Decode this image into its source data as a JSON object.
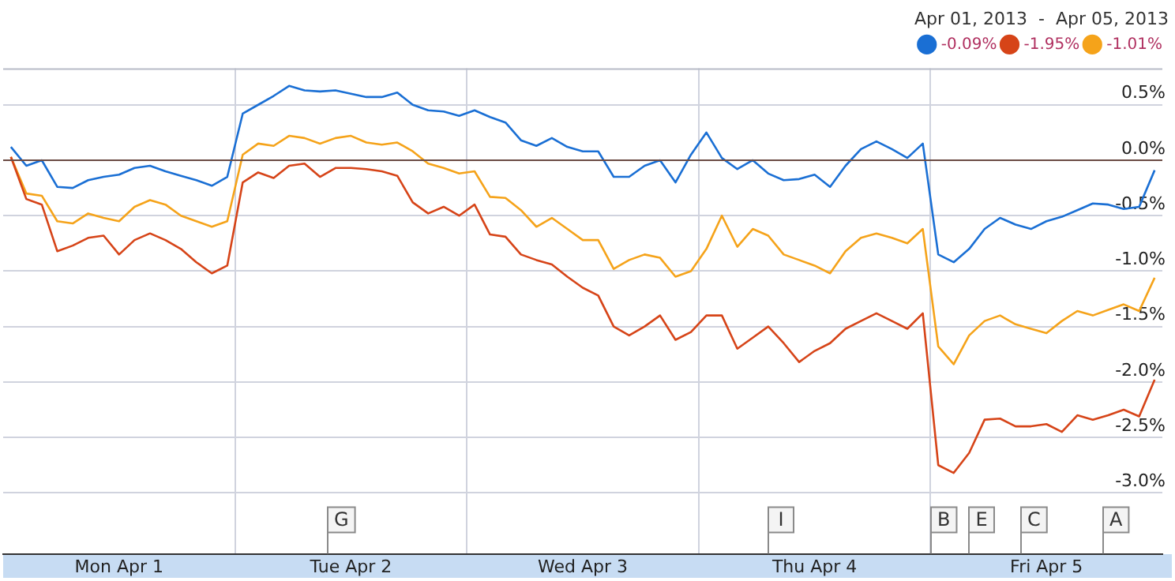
{
  "chart_data": {
    "type": "line",
    "title": "Apr 01, 2013  -  Apr 05, 2013",
    "categories": [
      null,
      null,
      null,
      null,
      null,
      null,
      null,
      "Mon Apr 1",
      null,
      null,
      null,
      null,
      null,
      null,
      null,
      null,
      null,
      null,
      null,
      null,
      null,
      null,
      "Tue Apr 2",
      null,
      null,
      null,
      null,
      null,
      null,
      null,
      null,
      null,
      null,
      null,
      null,
      null,
      null,
      "Wed Apr 3",
      null,
      null,
      null,
      null,
      null,
      null,
      null,
      null,
      null,
      null,
      null,
      null,
      null,
      null,
      "Thu Apr 4",
      null,
      null,
      null,
      null,
      null,
      null,
      null,
      null,
      null,
      null,
      null,
      null,
      null,
      null,
      "Fri Apr 5",
      null,
      null,
      null,
      null,
      null,
      null,
      null
    ],
    "ylim": [
      -3.55,
      0.83
    ],
    "yticks": [
      {
        "value": 0.5,
        "label": "0.5%"
      },
      {
        "value": 0,
        "label": "0.0%"
      },
      {
        "value": -0.5,
        "label": "-0.5%"
      },
      {
        "value": -1,
        "label": "-1.0%"
      },
      {
        "value": -1.5,
        "label": "-1.5%"
      },
      {
        "value": -2,
        "label": "-2.0%"
      },
      {
        "value": -2.5,
        "label": "-2.5%"
      },
      {
        "value": -3,
        "label": "-3.0%"
      }
    ],
    "grid": true,
    "legend": "top right",
    "marker": "none",
    "line_style": "solid",
    "ref_lines": [
      {
        "axis": "y",
        "value": 0,
        "color": "#6b4c44"
      }
    ],
    "annotations": [
      "G",
      "I",
      "B",
      "E",
      "C",
      "A"
    ],
    "series": [
      {
        "name": "-0.09%",
        "color": "#1a6fd4",
        "values": [
          0.12,
          -0.05,
          0.0,
          -0.24,
          -0.25,
          -0.18,
          -0.15,
          -0.13,
          -0.07,
          -0.05,
          -0.1,
          -0.14,
          -0.18,
          -0.23,
          -0.15,
          0.42,
          0.5,
          0.58,
          0.67,
          0.63,
          0.62,
          0.63,
          0.6,
          0.57,
          0.57,
          0.61,
          0.5,
          0.45,
          0.44,
          0.4,
          0.45,
          0.39,
          0.34,
          0.18,
          0.13,
          0.2,
          0.12,
          0.08,
          0.08,
          -0.15,
          -0.15,
          -0.05,
          0.0,
          -0.2,
          0.05,
          0.25,
          0.02,
          -0.08,
          0.0,
          -0.12,
          -0.18,
          -0.17,
          -0.13,
          -0.24,
          -0.05,
          0.1,
          0.17,
          0.1,
          0.02,
          0.15,
          -0.85,
          -0.92,
          -0.8,
          -0.62,
          -0.52,
          -0.58,
          -0.62,
          -0.55,
          -0.51,
          -0.45,
          -0.39,
          -0.4,
          -0.44,
          -0.42,
          -0.09
        ]
      },
      {
        "name": "-1.95%",
        "color": "#d64418",
        "values": [
          0.03,
          -0.35,
          -0.4,
          -0.82,
          -0.77,
          -0.7,
          -0.68,
          -0.85,
          -0.72,
          -0.66,
          -0.72,
          -0.8,
          -0.92,
          -1.02,
          -0.95,
          -0.2,
          -0.11,
          -0.16,
          -0.05,
          -0.03,
          -0.15,
          -0.07,
          -0.07,
          -0.08,
          -0.1,
          -0.14,
          -0.38,
          -0.48,
          -0.42,
          -0.5,
          -0.4,
          -0.67,
          -0.69,
          -0.85,
          -0.9,
          -0.94,
          -1.05,
          -1.15,
          -1.22,
          -1.5,
          -1.58,
          -1.5,
          -1.4,
          -1.62,
          -1.55,
          -1.4,
          -1.4,
          -1.7,
          -1.6,
          -1.5,
          -1.65,
          -1.82,
          -1.72,
          -1.65,
          -1.52,
          -1.45,
          -1.38,
          -1.45,
          -1.52,
          -1.38,
          -2.75,
          -2.82,
          -2.64,
          -2.34,
          -2.33,
          -2.4,
          -2.4,
          -2.38,
          -2.45,
          -2.3,
          -2.34,
          -2.3,
          -2.25,
          -2.31,
          -1.98
        ]
      },
      {
        "name": "-1.01%",
        "color": "#f5a31a",
        "values": [
          0.03,
          -0.3,
          -0.32,
          -0.55,
          -0.57,
          -0.48,
          -0.52,
          -0.55,
          -0.42,
          -0.36,
          -0.4,
          -0.5,
          -0.55,
          -0.6,
          -0.55,
          0.05,
          0.15,
          0.13,
          0.22,
          0.2,
          0.15,
          0.2,
          0.22,
          0.16,
          0.14,
          0.16,
          0.08,
          -0.03,
          -0.07,
          -0.12,
          -0.1,
          -0.33,
          -0.34,
          -0.45,
          -0.6,
          -0.52,
          -0.62,
          -0.72,
          -0.72,
          -0.98,
          -0.9,
          -0.85,
          -0.88,
          -1.05,
          -1.0,
          -0.8,
          -0.5,
          -0.78,
          -0.62,
          -0.68,
          -0.85,
          -0.9,
          -0.95,
          -1.02,
          -0.82,
          -0.7,
          -0.66,
          -0.7,
          -0.75,
          -0.62,
          -1.68,
          -1.84,
          -1.58,
          -1.45,
          -1.4,
          -1.48,
          -1.52,
          -1.56,
          -1.45,
          -1.36,
          -1.4,
          -1.35,
          -1.3,
          -1.36,
          -1.06
        ]
      }
    ]
  }
}
